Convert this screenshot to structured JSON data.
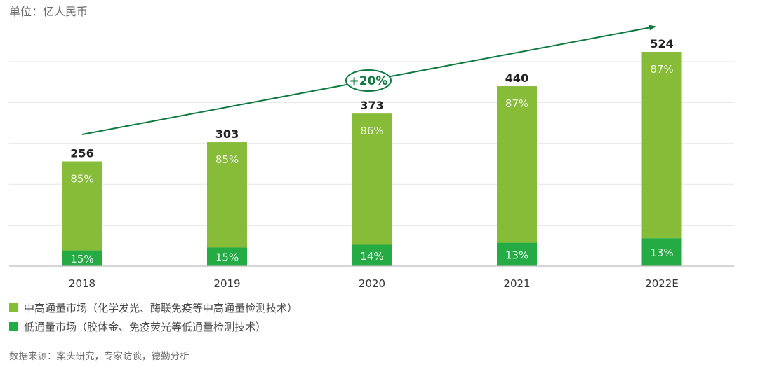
{
  "unit_label": "单位：亿人民币",
  "growth_label": "+20%",
  "source": "数据来源：案头研究，专家访谈，德勤分析",
  "colors": {
    "high_throughput": "#86bc37",
    "low_throughput": "#25ab44",
    "arrow": "#0e7a3f",
    "grid": "#e6e6e6",
    "axis": "#bdbdbd"
  },
  "legend": [
    {
      "label": "中高通量市场（化学发光、酶联免疫等中高通量检测技术）",
      "color": "#86bc37"
    },
    {
      "label": "低通量市场（胶体金、免疫荧光等低通量检测技术）",
      "color": "#25ab44"
    }
  ],
  "chart_data": {
    "type": "bar",
    "stacked": true,
    "title": "",
    "xlabel": "",
    "ylabel": "单位：亿人民币",
    "categories": [
      "2018",
      "2019",
      "2020",
      "2021",
      "2022E"
    ],
    "totals": [
      256,
      303,
      373,
      440,
      524
    ],
    "series": [
      {
        "name": "低通量市场（胶体金、免疫荧光等低通量检测技术）",
        "share_percent": [
          15,
          15,
          14,
          13,
          13
        ],
        "labels": [
          "15%",
          "15%",
          "14%",
          "13%",
          "13%"
        ]
      },
      {
        "name": "中高通量市场（化学发光、酶联免疫等中高通量检测技术）",
        "share_percent": [
          85,
          85,
          86,
          87,
          87
        ],
        "labels": [
          "85%",
          "85%",
          "86%",
          "87%",
          "87%"
        ]
      }
    ],
    "ylim": [
      0,
      600
    ],
    "gridline_step": 100,
    "grid": true,
    "y_tick_labels_visible": false,
    "legend_position": "bottom-left",
    "annotation": {
      "type": "trend-arrow",
      "label": "+20%",
      "from_category": "2018",
      "to_category": "2022E"
    }
  }
}
